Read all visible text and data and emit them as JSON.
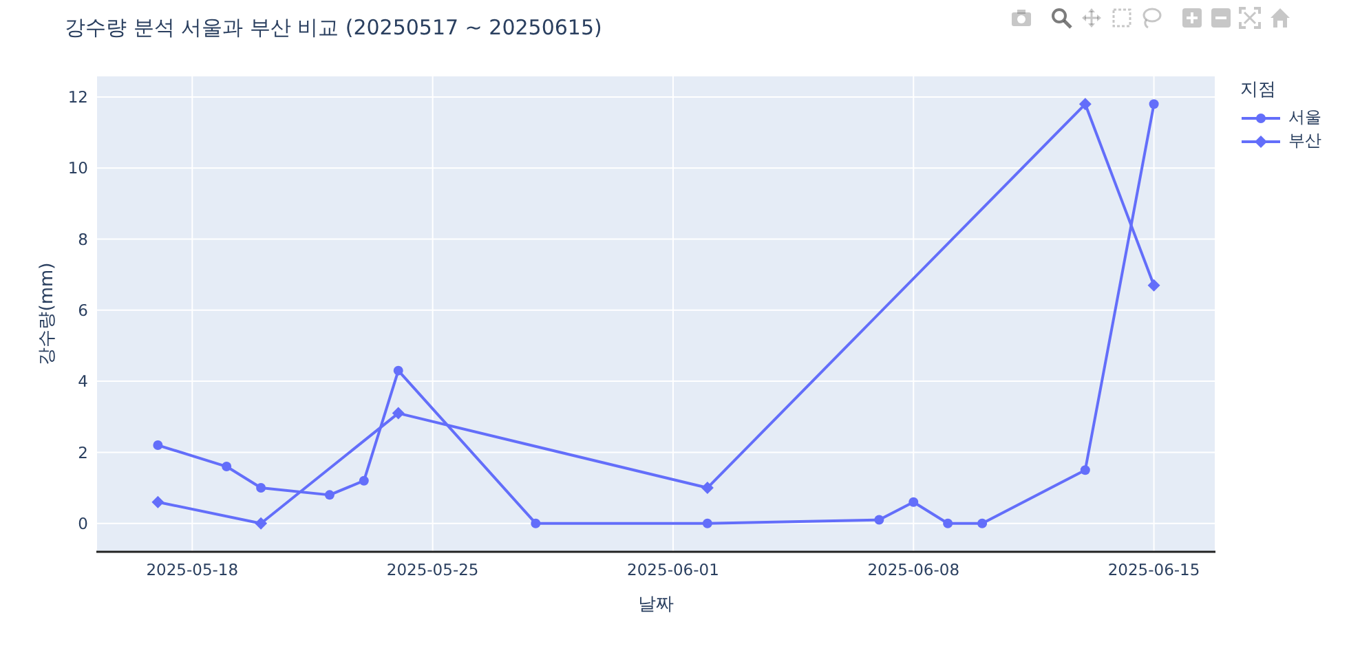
{
  "chart_data": {
    "type": "line",
    "title": "강수량 분석 서울과 부산 비교 (20250517 ~ 20250615)",
    "xlabel": "날짜",
    "ylabel": "강수량(mm)",
    "legend_title": "지점",
    "series": [
      {
        "name": "서울",
        "color": "#636efa",
        "marker": "circle",
        "x": [
          "2025-05-17",
          "2025-05-19",
          "2025-05-20",
          "2025-05-22",
          "2025-05-23",
          "2025-05-24",
          "2025-05-28",
          "2025-06-02",
          "2025-06-07",
          "2025-06-08",
          "2025-06-09",
          "2025-06-10",
          "2025-06-13",
          "2025-06-15"
        ],
        "values": [
          2.2,
          1.6,
          1.0,
          0.8,
          1.2,
          4.3,
          0,
          0,
          0.1,
          0.6,
          0,
          0,
          1.5,
          11.8
        ]
      },
      {
        "name": "부산",
        "color": "#636efa",
        "marker": "diamond",
        "x": [
          "2025-05-17",
          "2025-05-20",
          "2025-05-24",
          "2025-06-02",
          "2025-06-13",
          "2025-06-15"
        ],
        "values": [
          0.6,
          0,
          3.1,
          1.0,
          11.8,
          6.7
        ]
      }
    ],
    "xlim": [
      "2025-05-15T05:00",
      "2025-06-16T19:00"
    ],
    "xticks": [
      "2025-05-18",
      "2025-05-25",
      "2025-06-01",
      "2025-06-08",
      "2025-06-15"
    ],
    "ylim": [
      -0.8,
      12.6
    ],
    "yticks": [
      0,
      2,
      4,
      6,
      8,
      10,
      12
    ],
    "grid": true,
    "legend": "top right",
    "line_style": "solid"
  }
}
